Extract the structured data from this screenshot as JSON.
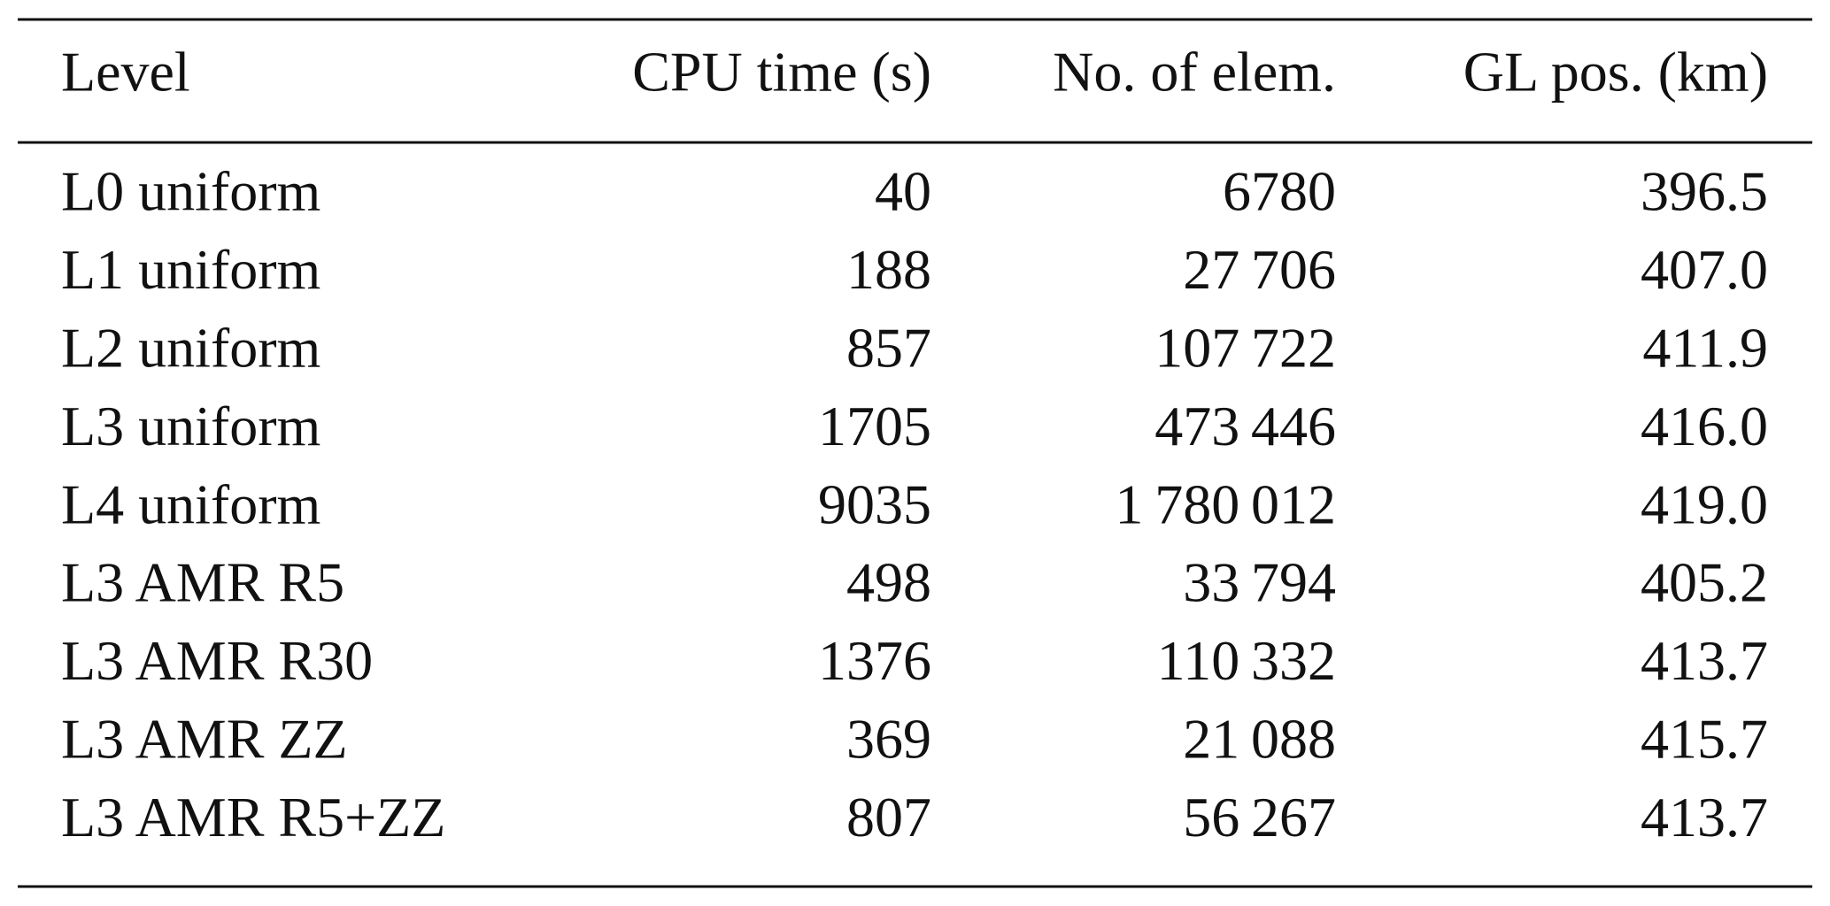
{
  "table": {
    "header": [
      "Level",
      "CPU time (s)",
      "No. of elem.",
      "GL pos. (km)"
    ],
    "rows": [
      [
        "L0 uniform",
        "40",
        "6780",
        "396.5"
      ],
      [
        "L1 uniform",
        "188",
        "27 706",
        "407.0"
      ],
      [
        "L2 uniform",
        "857",
        "107 722",
        "411.9"
      ],
      [
        "L3 uniform",
        "1705",
        "473 446",
        "416.0"
      ],
      [
        "L4 uniform",
        "9035",
        "1 780 012",
        "419.0"
      ],
      [
        "L3 AMR R5",
        "498",
        "33 794",
        "405.2"
      ],
      [
        "L3 AMR R30",
        "1376",
        "110 332",
        "413.7"
      ],
      [
        "L3 AMR ZZ",
        "369",
        "21 088",
        "415.7"
      ],
      [
        "L3 AMR R5+ZZ",
        "807",
        "56 267",
        "413.7"
      ]
    ]
  }
}
